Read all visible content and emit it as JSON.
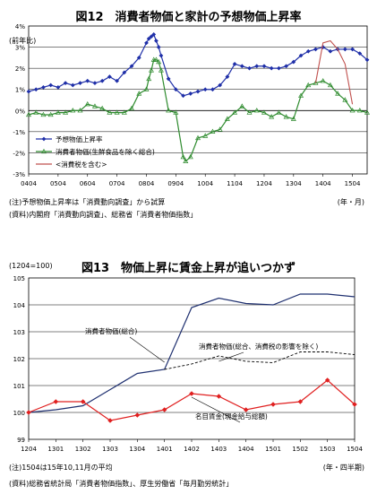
{
  "chart_data": [
    {
      "type": "line",
      "title": "図12　消費者物価と家計の予想物価上昇率",
      "ylabel": "(前年比)",
      "xlabel": "(年・月)",
      "ylim": [
        -3,
        4
      ],
      "yticks": [
        -3,
        -2,
        -1,
        0,
        1,
        2,
        3,
        4
      ],
      "ytick_labels": [
        "-3%",
        "-2%",
        "-1%",
        "0%",
        "1%",
        "2%",
        "3%",
        "4%"
      ],
      "xticks": [
        "0404",
        "0504",
        "0604",
        "0704",
        "0804",
        "0904",
        "1004",
        "1104",
        "1204",
        "1304",
        "1404",
        "1504"
      ],
      "grid": "horizontal",
      "legend_position": "bottom-left",
      "series": [
        {
          "name": "予想物価上昇率",
          "color": "#1f2fa8",
          "marker": "diamond",
          "x": [
            "0404",
            "0407",
            "0410",
            "0501",
            "0504",
            "0507",
            "0510",
            "0601",
            "0604",
            "0607",
            "0610",
            "0701",
            "0704",
            "0707",
            "0710",
            "0801",
            "0804",
            "0805",
            "0806",
            "0807",
            "0808",
            "0809",
            "0810",
            "0901",
            "0904",
            "0907",
            "0910",
            "1001",
            "1004",
            "1007",
            "1010",
            "1101",
            "1104",
            "1107",
            "1110",
            "1201",
            "1204",
            "1207",
            "1210",
            "1301",
            "1304",
            "1307",
            "1310",
            "1401",
            "1404",
            "1407",
            "1410",
            "1501",
            "1504",
            "1507",
            "1510"
          ],
          "values": [
            0.9,
            1.0,
            1.1,
            1.2,
            1.1,
            1.3,
            1.2,
            1.3,
            1.4,
            1.3,
            1.4,
            1.6,
            1.4,
            1.8,
            2.1,
            2.5,
            3.2,
            3.4,
            3.5,
            3.6,
            3.3,
            3.0,
            2.6,
            1.5,
            1.0,
            0.7,
            0.8,
            0.9,
            1.0,
            1.0,
            1.2,
            1.6,
            2.2,
            2.1,
            2.0,
            2.1,
            2.1,
            2.0,
            2.0,
            2.1,
            2.3,
            2.6,
            2.8,
            2.9,
            3.0,
            2.8,
            2.9,
            2.9,
            2.9,
            2.7,
            2.4
          ]
        },
        {
          "name": "消費者物価(生鮮食品を除く総合)",
          "color": "#2e8b2e",
          "marker": "triangle",
          "x": [
            "0404",
            "0407",
            "0410",
            "0501",
            "0504",
            "0507",
            "0510",
            "0601",
            "0604",
            "0607",
            "0610",
            "0701",
            "0704",
            "0707",
            "0710",
            "0801",
            "0804",
            "0805",
            "0806",
            "0807",
            "0808",
            "0809",
            "0810",
            "0901",
            "0904",
            "0907",
            "0908",
            "0910",
            "1001",
            "1004",
            "1007",
            "1010",
            "1101",
            "1104",
            "1107",
            "1110",
            "1201",
            "1204",
            "1207",
            "1210",
            "1301",
            "1304",
            "1307",
            "1310",
            "1401",
            "1404",
            "1407",
            "1410",
            "1501",
            "1504",
            "1507",
            "1510"
          ],
          "values": [
            -0.2,
            -0.1,
            -0.2,
            -0.2,
            -0.1,
            -0.1,
            0.0,
            0.0,
            0.3,
            0.2,
            0.1,
            -0.1,
            -0.1,
            -0.1,
            0.1,
            0.8,
            1.0,
            1.5,
            1.9,
            2.4,
            2.4,
            2.3,
            1.9,
            0.0,
            -0.1,
            -2.2,
            -2.4,
            -2.2,
            -1.3,
            -1.2,
            -1.0,
            -0.9,
            -0.4,
            -0.1,
            0.2,
            -0.1,
            0.0,
            -0.1,
            -0.3,
            -0.1,
            -0.3,
            -0.4,
            0.7,
            1.2,
            1.3,
            1.4,
            1.2,
            0.8,
            0.5,
            0.0,
            0.0,
            -0.1
          ]
        },
        {
          "name": "<消費税を含む>",
          "color": "#c0504d",
          "marker": "none",
          "x": [
            "1401",
            "1404",
            "1407",
            "1410",
            "1501",
            "1504"
          ],
          "values": [
            1.3,
            3.2,
            3.3,
            2.9,
            2.2,
            0.3
          ]
        }
      ]
    },
    {
      "type": "line",
      "title": "図13　物価上昇に賃金上昇が追いつかず",
      "ylabel": "(1204=100)",
      "xlabel": "(年・四半期)",
      "ylim": [
        99,
        105
      ],
      "yticks": [
        99,
        100,
        101,
        102,
        103,
        104,
        105
      ],
      "categories": [
        "1204",
        "1301",
        "1302",
        "1303",
        "1304",
        "1401",
        "1402",
        "1403",
        "1404",
        "1501",
        "1502",
        "1503",
        "1504"
      ],
      "grid": "horizontal",
      "series": [
        {
          "name": "消費者物価(総合)",
          "color": "#1f3070",
          "style": "solid",
          "values": [
            100.0,
            100.1,
            100.25,
            100.85,
            101.45,
            101.6,
            103.9,
            104.25,
            104.05,
            104.0,
            104.4,
            104.4,
            104.3
          ]
        },
        {
          "name": "消費者物価(総合、消費税の影響を除く)",
          "color": "#000000",
          "style": "dashed",
          "values": [
            null,
            null,
            null,
            null,
            null,
            101.6,
            101.8,
            102.1,
            101.9,
            101.85,
            102.25,
            102.25,
            102.15
          ]
        },
        {
          "name": "名目賃金(現金給与総額)",
          "color": "#e02020",
          "style": "solid",
          "marker": "diamond",
          "values": [
            100.0,
            100.4,
            100.4,
            99.7,
            99.9,
            100.1,
            100.7,
            100.6,
            100.1,
            100.3,
            100.4,
            101.2,
            100.3
          ]
        }
      ]
    }
  ],
  "notes": {
    "fig1_note1": "(注)予想物価上昇率は「消費動向調査」から試算",
    "fig1_note2": "(資料)内閣府「消費動向調査」、総務省「消費者物価指数」",
    "fig2_note1": "(注)1504は15年10,11月の平均",
    "fig2_note2": "(資料)総務省統計局「消費者物価指数」、厚生労働省「毎月勤労統計」"
  }
}
